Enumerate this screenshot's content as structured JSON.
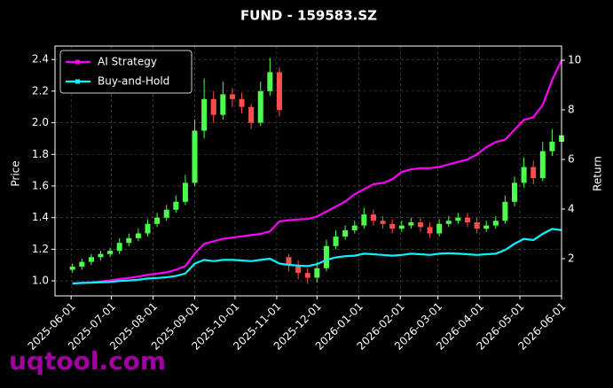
{
  "chart_data": {
    "type": "candlestick",
    "title": "FUND - 159583.SZ",
    "ylabel": "Price",
    "y2label": "Return",
    "watermark": "uqtool.com",
    "x": [
      "2025-06-02",
      "2025-06-09",
      "2025-06-16",
      "2025-06-23",
      "2025-06-30",
      "2025-07-07",
      "2025-07-14",
      "2025-07-21",
      "2025-07-28",
      "2025-08-04",
      "2025-08-11",
      "2025-08-18",
      "2025-08-25",
      "2025-09-01",
      "2025-09-08",
      "2025-09-15",
      "2025-09-22",
      "2025-09-29",
      "2025-10-06",
      "2025-10-13",
      "2025-10-20",
      "2025-10-27",
      "2025-11-03",
      "2025-11-10",
      "2025-11-17",
      "2025-11-24",
      "2025-12-01",
      "2025-12-08",
      "2025-12-15",
      "2025-12-22",
      "2025-12-29",
      "2026-01-05",
      "2026-01-12",
      "2026-01-19",
      "2026-01-26",
      "2026-02-02",
      "2026-02-09",
      "2026-02-16",
      "2026-02-23",
      "2026-03-02",
      "2026-03-09",
      "2026-03-16",
      "2026-03-23",
      "2026-03-30",
      "2026-04-06",
      "2026-04-13",
      "2026-04-20",
      "2026-04-27",
      "2026-05-04",
      "2026-05-11",
      "2026-05-18",
      "2026-05-25",
      "2026-06-01"
    ],
    "candles": {
      "open": [
        1.07,
        1.09,
        1.12,
        1.15,
        1.17,
        1.19,
        1.24,
        1.27,
        1.3,
        1.36,
        1.4,
        1.45,
        1.5,
        1.62,
        1.95,
        2.15,
        2.05,
        2.18,
        2.15,
        2.1,
        2.0,
        2.2,
        2.32,
        1.15,
        1.1,
        1.05,
        1.02,
        1.08,
        1.22,
        1.28,
        1.32,
        1.35,
        1.42,
        1.38,
        1.36,
        1.33,
        1.35,
        1.37,
        1.34,
        1.3,
        1.36,
        1.38,
        1.4,
        1.37,
        1.33,
        1.35,
        1.38,
        1.5,
        1.62,
        1.72,
        1.65,
        1.82,
        1.88
      ],
      "high": [
        1.11,
        1.14,
        1.17,
        1.19,
        1.21,
        1.27,
        1.3,
        1.33,
        1.39,
        1.43,
        1.48,
        1.54,
        1.67,
        2.02,
        2.28,
        2.2,
        2.26,
        2.22,
        2.19,
        2.12,
        2.26,
        2.41,
        2.35,
        1.17,
        1.13,
        1.08,
        1.12,
        1.26,
        1.32,
        1.35,
        1.38,
        1.46,
        1.45,
        1.41,
        1.39,
        1.38,
        1.4,
        1.4,
        1.37,
        1.39,
        1.41,
        1.43,
        1.43,
        1.4,
        1.38,
        1.41,
        1.54,
        1.66,
        1.78,
        1.76,
        1.88,
        1.96,
        1.97
      ],
      "low": [
        1.05,
        1.07,
        1.1,
        1.13,
        1.15,
        1.17,
        1.22,
        1.25,
        1.28,
        1.34,
        1.38,
        1.43,
        1.48,
        1.6,
        1.9,
        2.0,
        2.02,
        2.1,
        2.06,
        1.96,
        1.98,
        2.17,
        2.04,
        1.06,
        1.01,
        0.98,
        0.99,
        1.06,
        1.2,
        1.26,
        1.3,
        1.33,
        1.35,
        1.33,
        1.3,
        1.31,
        1.33,
        1.31,
        1.27,
        1.28,
        1.34,
        1.36,
        1.34,
        1.3,
        1.31,
        1.33,
        1.36,
        1.47,
        1.59,
        1.61,
        1.63,
        1.79,
        1.85
      ],
      "close": [
        1.09,
        1.12,
        1.15,
        1.17,
        1.19,
        1.24,
        1.27,
        1.3,
        1.36,
        1.4,
        1.45,
        1.5,
        1.62,
        1.95,
        2.15,
        2.05,
        2.18,
        2.15,
        2.1,
        2.0,
        2.2,
        2.32,
        2.08,
        1.1,
        1.05,
        1.02,
        1.08,
        1.22,
        1.28,
        1.32,
        1.35,
        1.42,
        1.38,
        1.36,
        1.33,
        1.35,
        1.37,
        1.34,
        1.3,
        1.36,
        1.38,
        1.4,
        1.37,
        1.33,
        1.35,
        1.38,
        1.5,
        1.62,
        1.72,
        1.65,
        1.82,
        1.88,
        1.92
      ],
      "up_color": "#4cff4c",
      "down_color": "#ff4c4c"
    },
    "series": [
      {
        "name": "AI Strategy",
        "color": "#ff00ff",
        "axis": "y2",
        "values": [
          1.0,
          1.02,
          1.05,
          1.08,
          1.12,
          1.18,
          1.22,
          1.28,
          1.35,
          1.4,
          1.45,
          1.55,
          1.7,
          2.2,
          2.6,
          2.7,
          2.8,
          2.85,
          2.9,
          2.95,
          3.0,
          3.1,
          3.5,
          3.55,
          3.58,
          3.6,
          3.7,
          3.9,
          4.1,
          4.3,
          4.6,
          4.8,
          5.0,
          5.05,
          5.2,
          5.5,
          5.6,
          5.65,
          5.65,
          5.7,
          5.8,
          5.9,
          6.0,
          6.2,
          6.5,
          6.7,
          6.8,
          7.2,
          7.6,
          7.7,
          8.2,
          9.2,
          10.0
        ]
      },
      {
        "name": "Buy-and-Hold",
        "color": "#00f5ff",
        "axis": "y2",
        "values": [
          1.0,
          1.02,
          1.03,
          1.05,
          1.06,
          1.1,
          1.12,
          1.15,
          1.2,
          1.22,
          1.25,
          1.3,
          1.4,
          1.8,
          1.95,
          1.9,
          1.95,
          1.95,
          1.93,
          1.9,
          1.95,
          2.0,
          1.8,
          1.75,
          1.72,
          1.7,
          1.78,
          1.95,
          2.05,
          2.1,
          2.12,
          2.2,
          2.18,
          2.15,
          2.12,
          2.15,
          2.2,
          2.18,
          2.15,
          2.2,
          2.22,
          2.2,
          2.18,
          2.15,
          2.18,
          2.2,
          2.35,
          2.6,
          2.8,
          2.75,
          3.0,
          3.2,
          3.15
        ]
      }
    ],
    "xlim": [
      "2025-05-20",
      "2026-06-01"
    ],
    "xticks": [
      "2025-06-01",
      "2025-07-01",
      "2025-08-01",
      "2025-09-01",
      "2025-10-01",
      "2025-11-01",
      "2025-12-01",
      "2026-01-01",
      "2026-02-01",
      "2026-03-01",
      "2026-04-01",
      "2026-05-01",
      "2026-06-01"
    ],
    "ylim": [
      0.905,
      2.485
    ],
    "yticks": [
      {
        "value": 1,
        "label": "1.0"
      },
      1.2,
      1.4,
      1.6,
      1.8,
      {
        "value": 2,
        "label": "2.0"
      },
      2.2,
      2.4
    ],
    "y2lim": [
      0.5,
      10.57
    ],
    "y2ticks": [
      2,
      4,
      6,
      8,
      10
    ],
    "grid": true,
    "legend": "upper left"
  }
}
